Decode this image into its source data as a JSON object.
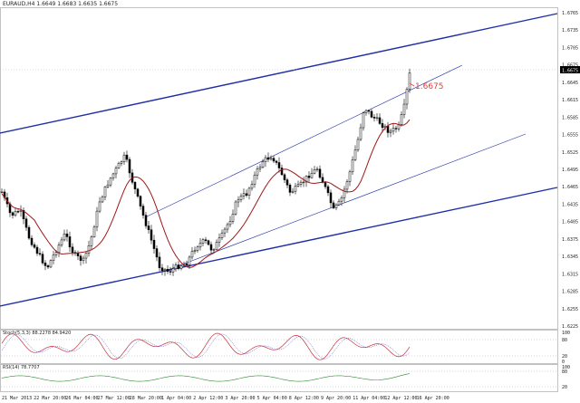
{
  "header": {
    "symbol_info": "EURAUD,H4  1.6649 1.6683 1.6635 1.6675"
  },
  "annotation": {
    "label": "1.6675",
    "color": "#e23c3c"
  },
  "current_price": {
    "label": "1.6675"
  },
  "price_axis": {
    "labels": [
      "1.6765",
      "1.6735",
      "1.6705",
      "1.6675",
      "1.6645",
      "1.6615",
      "1.6585",
      "1.6555",
      "1.6525",
      "1.6495",
      "1.6465",
      "1.6435",
      "1.6405",
      "1.6375",
      "1.6345",
      "1.6315",
      "1.6285",
      "1.6255",
      "1.6225"
    ]
  },
  "stoch": {
    "header": "Stoch(5,3,3) 88.2278 84.9420",
    "levels": [
      "100",
      "80",
      "20",
      "0"
    ]
  },
  "rsi": {
    "header": "RSI(14) 78.7707",
    "levels": [
      "100",
      "80",
      "20"
    ]
  },
  "time_axis": {
    "labels": [
      "21 Mar 2013",
      "22 Mar 20:00",
      "26 Mar 04:00",
      "27 Mar 12:00",
      "28 Mar 20:00",
      "1 Apr 04:00",
      "2 Apr 12:00",
      "3 Apr 20:00",
      "5 Apr 04:00",
      "8 Apr 12:00",
      "9 Apr 20:00",
      "11 Apr 04:00",
      "12 Apr 12:00",
      "16 Apr 20:00"
    ]
  },
  "colors": {
    "channel_line": "#1f2fa8",
    "moving_average": "#a01818",
    "stoch_main": "#c8303c",
    "stoch_signal": "#3c3cc8",
    "rsi_line": "#2e8b2e"
  },
  "chart_data": {
    "type": "candlestick",
    "instrument": "EURAUD",
    "timeframe": "H4",
    "last_price": 1.6675,
    "ylim": [
      1.621,
      1.678
    ]
  }
}
